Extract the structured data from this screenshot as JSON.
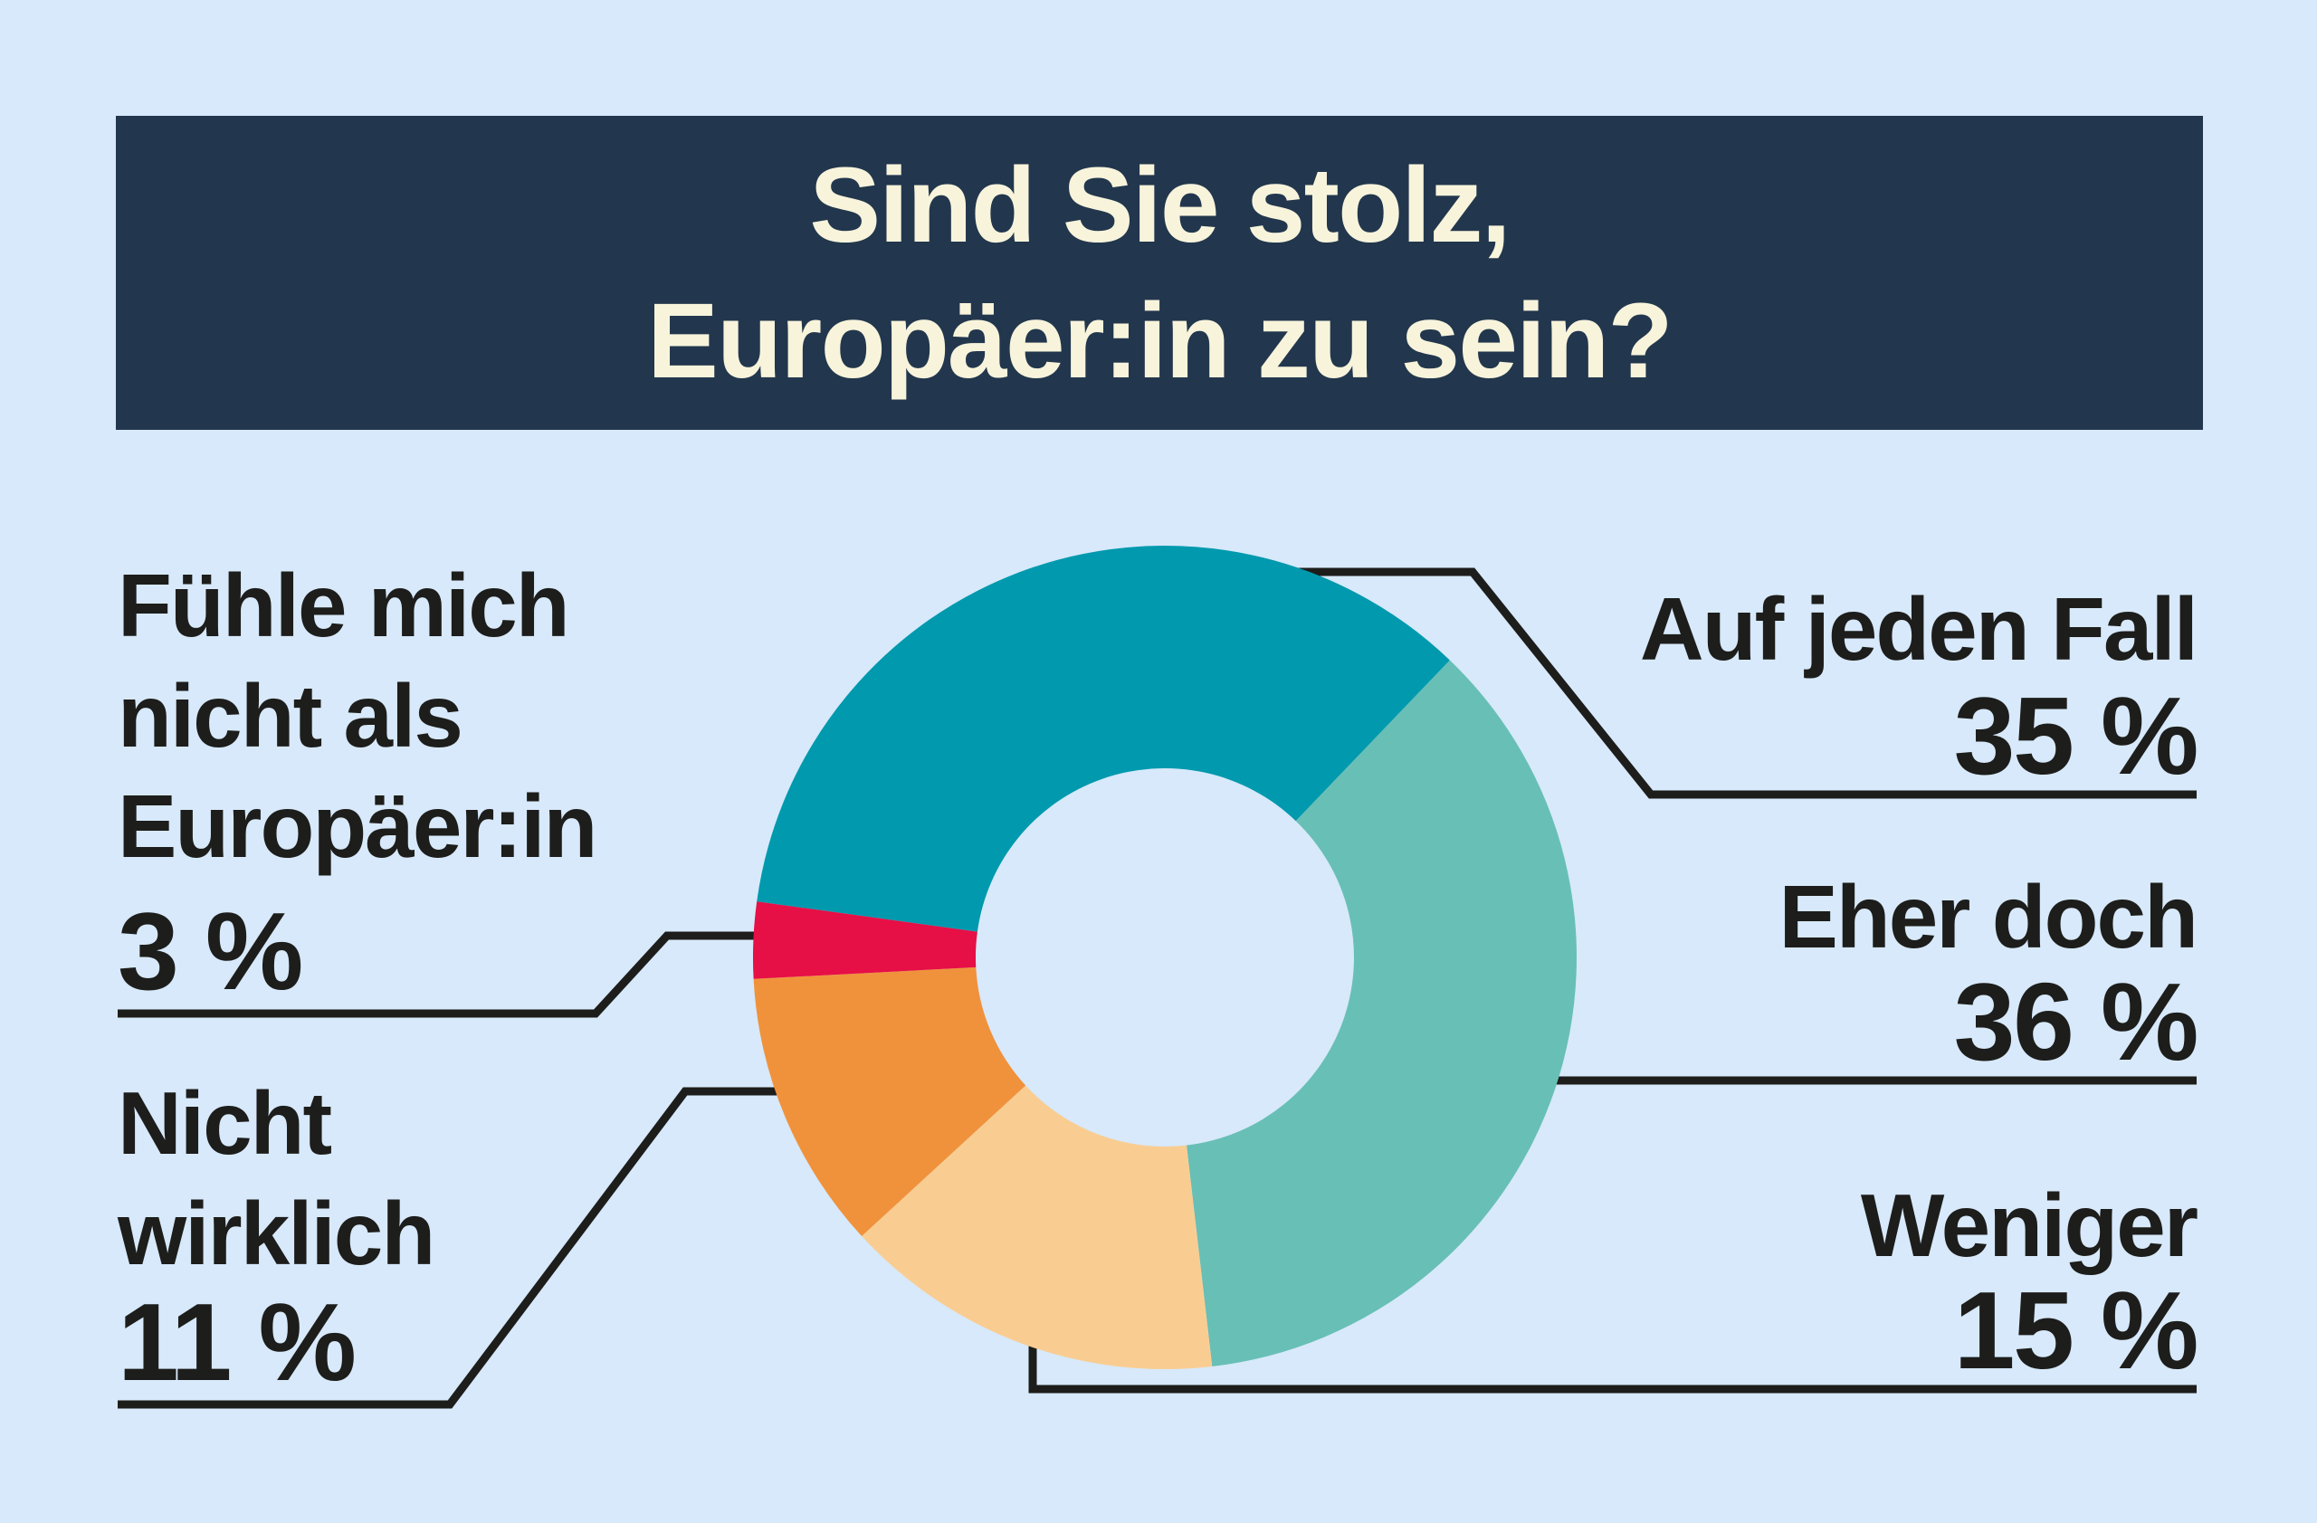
{
  "title": {
    "line1": "Sind Sie stolz,",
    "line2": "Europäer:in zu sein?"
  },
  "colors": {
    "background": "#d7e9fa",
    "title_bar": "#22374d",
    "title_text": "#f8f4dc",
    "label_text": "#1d1d1b",
    "leader_line": "#1d1d1b",
    "teal": "#0099ae",
    "seafoam": "#68bfb6",
    "peach": "#f9cd92",
    "orange": "#f0923c",
    "red": "#e60f46"
  },
  "chart_data": {
    "type": "pie",
    "subtype": "donut",
    "title": "Sind Sie stolz, Europäer:in zu sein?",
    "unit": "%",
    "start_angle_deg": -82.2,
    "direction": "clockwise",
    "inner_radius_ratio": 0.46,
    "segments": [
      {
        "label": "Auf jeden Fall",
        "value": 35,
        "color": "#0099ae"
      },
      {
        "label": "Eher doch",
        "value": 36,
        "color": "#68bfb6"
      },
      {
        "label": "Weniger",
        "value": 15,
        "color": "#f9cd92"
      },
      {
        "label": "Nicht wirklich",
        "value": 11,
        "color": "#f0923c"
      },
      {
        "label": "Fühle mich nicht als Europäer:in",
        "value": 3,
        "color": "#e60f46"
      }
    ]
  },
  "labels": {
    "auf_jeden_fall": {
      "name": "Auf jeden Fall",
      "pct": "35 %"
    },
    "eher_doch": {
      "name": "Eher doch",
      "pct": "36 %"
    },
    "weniger": {
      "name": "Weniger",
      "pct": "15 %"
    },
    "nicht_wirklich": {
      "line1": "Nicht",
      "line2": "wirklich",
      "pct": "11 %"
    },
    "fuehle": {
      "line1": "Fühle mich",
      "line2": "nicht als",
      "line3": "Europäer:in",
      "pct": "3 %"
    }
  }
}
